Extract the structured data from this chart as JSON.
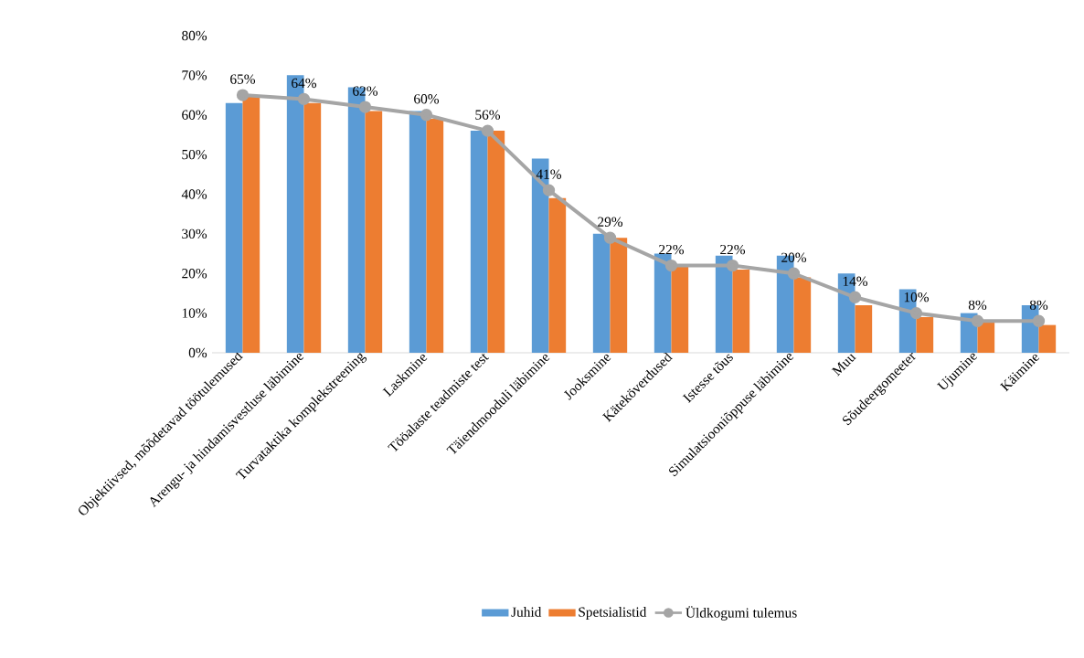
{
  "chart_data": {
    "type": "bar",
    "categories": [
      "Objektiivsed, mõõdetavad töötulemused",
      "Arengu- ja hindamisvestluse läbimine",
      "Turvataktika komplekstreening",
      "Laskmine",
      "Tööalaste teadmiste test",
      "Täiendmooduli läbimine",
      "Jooksmine",
      "Käteköverdused",
      "Istesse tõus",
      "Simulatsiooniõppuse läbimine",
      "Muu",
      "Sõudeergomeeter",
      "Ujumine",
      "Käimine"
    ],
    "ylim": [
      0,
      80
    ],
    "yticks": [
      {
        "value": 0,
        "label": "0%"
      },
      {
        "value": 10,
        "label": "10%"
      },
      {
        "value": 20,
        "label": "20%"
      },
      {
        "value": 30,
        "label": "30%"
      },
      {
        "value": 40,
        "label": "40%"
      },
      {
        "value": 50,
        "label": "50%"
      },
      {
        "value": 60,
        "label": "60%"
      },
      {
        "value": 70,
        "label": "70%"
      },
      {
        "value": 80,
        "label": "80%"
      }
    ],
    "series": [
      {
        "name": "Juhid",
        "color": "#5b9bd5",
        "values": [
          63,
          70,
          67,
          61,
          56,
          49,
          30,
          25,
          24.5,
          24.5,
          20,
          16,
          10,
          12
        ]
      },
      {
        "name": "Spetsialistid",
        "color": "#ed7d31",
        "values": [
          65,
          63,
          61,
          59,
          56,
          39,
          29,
          22,
          21,
          19,
          12,
          9,
          8,
          7
        ]
      },
      {
        "name": "Üldkogumi tulemus",
        "type": "line",
        "color": "#a5a5a5",
        "values": [
          65,
          64,
          62,
          60,
          56,
          41,
          29,
          22,
          22,
          20,
          14,
          10,
          8,
          8
        ],
        "value_labels": [
          "65%",
          "64%",
          "62%",
          "60%",
          "56%",
          "41%",
          "29%",
          "22%",
          "22%",
          "20%",
          "14%",
          "10%",
          "8%",
          "8%"
        ]
      }
    ],
    "marker": "circle",
    "legend": "bottom"
  }
}
